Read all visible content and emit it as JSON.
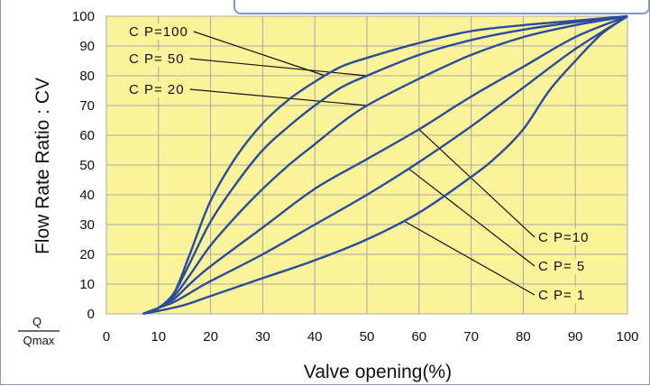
{
  "chart_data": {
    "type": "line",
    "xlabel": "Valve opening(%)",
    "ylabel": "Flow Rate Ratio : CV",
    "ylabel_fraction": {
      "numerator": "Q",
      "denominator": "Qmax"
    },
    "xlim": [
      0,
      100
    ],
    "ylim": [
      0,
      100
    ],
    "x_ticks": [
      0,
      10,
      20,
      30,
      40,
      50,
      60,
      70,
      80,
      90,
      100
    ],
    "y_ticks": [
      0,
      10,
      20,
      30,
      40,
      50,
      60,
      70,
      80,
      90,
      100
    ],
    "grid": true,
    "colors": {
      "plot_bg": "#fbf39a",
      "grid": "#a8a8a8",
      "curve": "#2b4c9c",
      "frame": "#7f98c8"
    },
    "series": [
      {
        "name": "C P=100",
        "x": [
          7,
          10,
          13,
          16,
          20,
          25,
          30,
          35,
          40,
          45,
          50,
          60,
          70,
          80,
          90,
          100
        ],
        "y": [
          0,
          2,
          7,
          20,
          38,
          53,
          64,
          72,
          78,
          83,
          86,
          91,
          95,
          97,
          98.5,
          100
        ]
      },
      {
        "name": "C P=50",
        "x": [
          7,
          10,
          13,
          16,
          20,
          25,
          30,
          35,
          40,
          45,
          50,
          60,
          70,
          80,
          90,
          100
        ],
        "y": [
          0,
          2,
          7,
          17,
          31,
          44,
          55,
          63,
          70,
          76,
          80,
          87,
          92,
          95.5,
          98,
          100
        ]
      },
      {
        "name": "C P=20",
        "x": [
          7,
          10,
          13,
          16,
          20,
          25,
          30,
          35,
          40,
          45,
          50,
          60,
          70,
          80,
          90,
          100
        ],
        "y": [
          0,
          2,
          6,
          13,
          23,
          33,
          42,
          50,
          57,
          64,
          70,
          79,
          87,
          93,
          97,
          100
        ]
      },
      {
        "name": "C P=10",
        "x": [
          7,
          10,
          13,
          16,
          20,
          30,
          40,
          50,
          60,
          70,
          80,
          90,
          100
        ],
        "y": [
          0,
          2,
          5,
          10,
          16,
          29,
          42,
          52,
          62,
          73,
          83,
          93,
          100
        ]
      },
      {
        "name": "C P=5",
        "x": [
          7,
          10,
          13,
          16,
          20,
          30,
          40,
          50,
          60,
          70,
          80,
          90,
          100
        ],
        "y": [
          0,
          2,
          4,
          7,
          11,
          20,
          30,
          40,
          51,
          63,
          76,
          89,
          100
        ]
      },
      {
        "name": "C P=1",
        "x": [
          7,
          10,
          15,
          20,
          30,
          40,
          50,
          60,
          70,
          75,
          80,
          85,
          90,
          95,
          100
        ],
        "y": [
          0,
          1,
          3,
          6,
          12,
          18,
          25,
          34,
          46,
          53,
          62,
          75,
          85,
          94,
          100
        ]
      }
    ],
    "annotations": [
      {
        "text": "C P=100",
        "series": "C P=100",
        "placement": "upper-left"
      },
      {
        "text": "C P= 50",
        "series": "C P=50",
        "placement": "upper-left"
      },
      {
        "text": "C P= 20",
        "series": "C P=20",
        "placement": "upper-left"
      },
      {
        "text": "C P=10",
        "series": "C P=10",
        "placement": "lower-right"
      },
      {
        "text": "C P= 5",
        "series": "C P=5",
        "placement": "lower-right"
      },
      {
        "text": "C P= 1",
        "series": "C P=1",
        "placement": "lower-right"
      }
    ]
  }
}
